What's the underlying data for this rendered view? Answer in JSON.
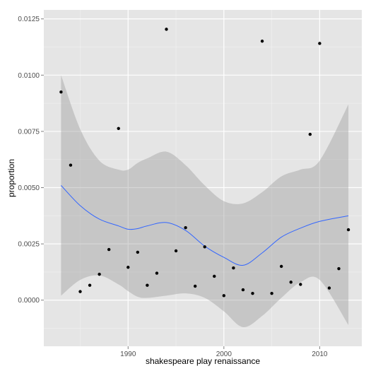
{
  "chart_data": {
    "type": "scatter",
    "title": "",
    "xlabel": "shakespeare play renaissance",
    "ylabel": "proportion",
    "xlim": [
      1981.2,
      2014.4
    ],
    "ylim": [
      -0.00205,
      0.0129
    ],
    "x_ticks": [
      1990,
      2000,
      2010
    ],
    "x_tick_labels": [
      "1990",
      "2000",
      "2010"
    ],
    "y_ticks": [
      0.0,
      0.0025,
      0.005,
      0.0075,
      0.01,
      0.0125
    ],
    "y_tick_labels": [
      "0.0000",
      "0.0025",
      "0.0050",
      "0.0075",
      "0.0100",
      "0.0125"
    ],
    "grid": true,
    "points": [
      {
        "x": 1983,
        "y": 0.00925
      },
      {
        "x": 1984,
        "y": 0.006
      },
      {
        "x": 1985,
        "y": 0.00038
      },
      {
        "x": 1986,
        "y": 0.00066
      },
      {
        "x": 1987,
        "y": 0.00115
      },
      {
        "x": 1988,
        "y": 0.00225
      },
      {
        "x": 1989,
        "y": 0.00763
      },
      {
        "x": 1990,
        "y": 0.00146
      },
      {
        "x": 1991,
        "y": 0.00213
      },
      {
        "x": 1992,
        "y": 0.00066
      },
      {
        "x": 1993,
        "y": 0.0012
      },
      {
        "x": 1994,
        "y": 0.01204
      },
      {
        "x": 1995,
        "y": 0.00219
      },
      {
        "x": 1996,
        "y": 0.00322
      },
      {
        "x": 1997,
        "y": 0.00062
      },
      {
        "x": 1998,
        "y": 0.00237
      },
      {
        "x": 1999,
        "y": 0.00106
      },
      {
        "x": 2000,
        "y": 0.0002
      },
      {
        "x": 2001,
        "y": 0.00143
      },
      {
        "x": 2002,
        "y": 0.00046
      },
      {
        "x": 2003,
        "y": 0.0003
      },
      {
        "x": 2004,
        "y": 0.01151
      },
      {
        "x": 2005,
        "y": 0.0003
      },
      {
        "x": 2006,
        "y": 0.0015
      },
      {
        "x": 2007,
        "y": 0.0008
      },
      {
        "x": 2008,
        "y": 0.0007
      },
      {
        "x": 2009,
        "y": 0.00737
      },
      {
        "x": 2010,
        "y": 0.01141
      },
      {
        "x": 2011,
        "y": 0.00054
      },
      {
        "x": 2012,
        "y": 0.0014
      },
      {
        "x": 2013,
        "y": 0.00313
      }
    ],
    "smooth": {
      "x": [
        1983,
        1985,
        1987,
        1989,
        1990,
        1991,
        1992,
        1994,
        1996,
        1998,
        2000,
        2002,
        2004,
        2006,
        2008,
        2010,
        2013
      ],
      "y": [
        0.0051,
        0.0042,
        0.0036,
        0.0033,
        0.00315,
        0.00318,
        0.0033,
        0.00345,
        0.0031,
        0.0024,
        0.0019,
        0.00155,
        0.0021,
        0.0028,
        0.0032,
        0.0035,
        0.00375
      ],
      "lower": [
        0.0002,
        0.0009,
        0.0011,
        0.0007,
        0.0004,
        0.00015,
        0.0001,
        0.0002,
        0.0003,
        0.0001,
        -0.0005,
        -0.0012,
        -0.0007,
        0.0001,
        0.0008,
        0.0009,
        -0.0011
      ],
      "upper": [
        0.01,
        0.0076,
        0.0062,
        0.0058,
        0.0058,
        0.0061,
        0.0063,
        0.0066,
        0.006,
        0.0051,
        0.0044,
        0.0043,
        0.0048,
        0.0055,
        0.0058,
        0.0062,
        0.0087
      ]
    },
    "colors": {
      "panel": "#e5e5e5",
      "grid_major": "#ffffff",
      "grid_minor": "#f2f2f2",
      "point": "#000000",
      "line": "#3366ff",
      "ribbon": "#999999"
    }
  }
}
